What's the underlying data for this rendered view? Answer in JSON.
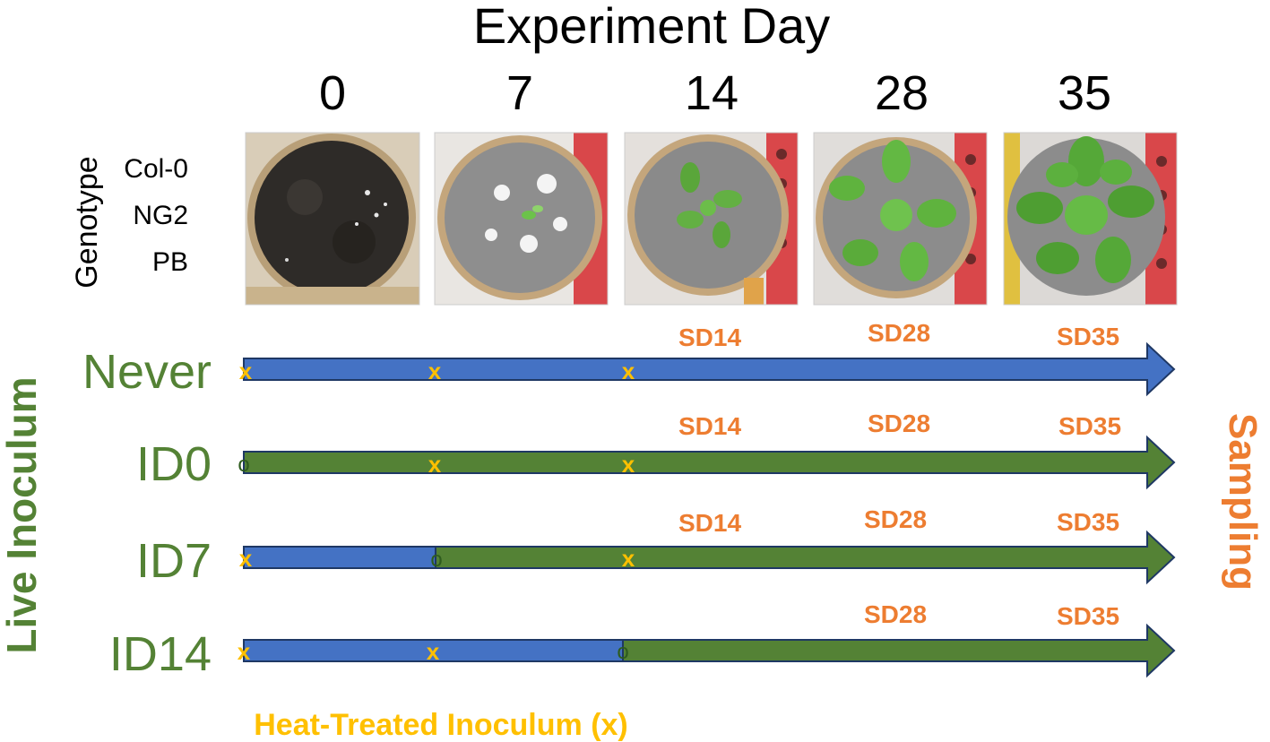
{
  "header": {
    "title": "Experiment Day",
    "days": [
      "0",
      "7",
      "14",
      "28",
      "35"
    ]
  },
  "genotype": {
    "label": "Genotype",
    "items": [
      "Col-0",
      "NG2",
      "PB"
    ]
  },
  "photos": [
    {
      "name": "day-0-photo",
      "depicts": "dark soil disc on mesh"
    },
    {
      "name": "day-7-photo",
      "depicts": "mesh disc with tiny seedling"
    },
    {
      "name": "day-14-photo",
      "depicts": "small rosette"
    },
    {
      "name": "day-28-photo",
      "depicts": "medium rosette"
    },
    {
      "name": "day-35-photo",
      "depicts": "large rosette"
    }
  ],
  "side_labels": {
    "left": "Live Inoculum",
    "right": "Sampling",
    "bottom": "Heat-Treated Inoculum (x)"
  },
  "rows": [
    {
      "label": "Never",
      "switch_day": null,
      "samples": [
        "SD14",
        "SD28",
        "SD35"
      ],
      "marks": [
        "x",
        "x",
        "x"
      ]
    },
    {
      "label": "ID0",
      "switch_day": 0,
      "samples": [
        "SD14",
        "SD28",
        "SD35"
      ],
      "marks": [
        "o",
        "x",
        "x"
      ]
    },
    {
      "label": "ID7",
      "switch_day": 7,
      "samples": [
        "SD14",
        "SD28",
        "SD35"
      ],
      "marks": [
        "x",
        "o",
        "x"
      ]
    },
    {
      "label": "ID14",
      "switch_day": 14,
      "samples": [
        "SD28",
        "SD35"
      ],
      "marks": [
        "x",
        "x",
        "o"
      ]
    }
  ],
  "colors": {
    "heat_treated": "#4472c4",
    "live": "#548235",
    "arrow_outline": "#1f3864",
    "row_label": "#548235",
    "sampling": "#ed7d31",
    "x_mark": "#ffc000",
    "text": "#000000"
  }
}
